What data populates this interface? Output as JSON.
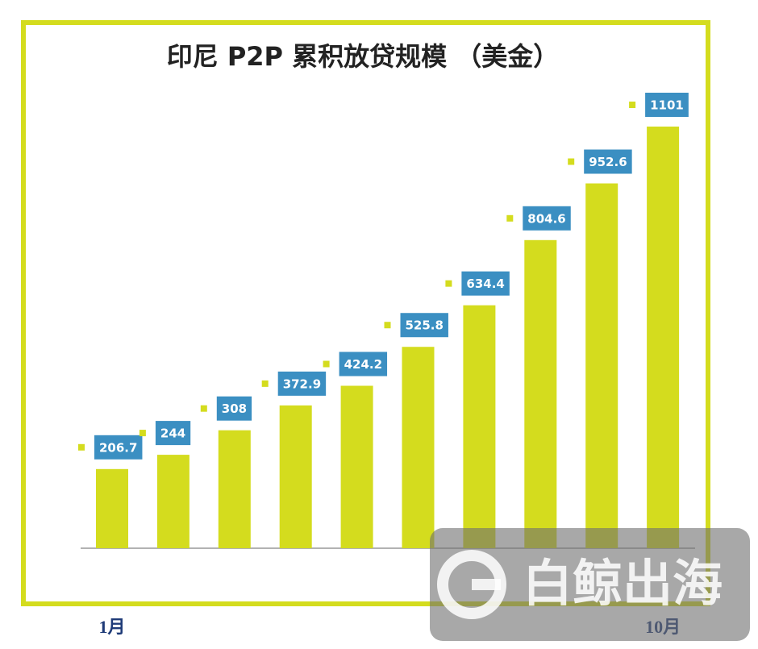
{
  "chart_data": {
    "type": "bar",
    "title": "印尼 P2P 累积放贷规模 （美金）",
    "categories": [
      "1月",
      null,
      null,
      null,
      null,
      null,
      null,
      null,
      null,
      "10月"
    ],
    "values": [
      206.7,
      244,
      308,
      372.9,
      424.2,
      525.8,
      634.4,
      804.6,
      952.6,
      1101
    ],
    "color": "#d4dc1e",
    "label_color": "#3b8fc2",
    "frame_color": "#d4dc1e"
  },
  "watermark": "白鲸出海"
}
